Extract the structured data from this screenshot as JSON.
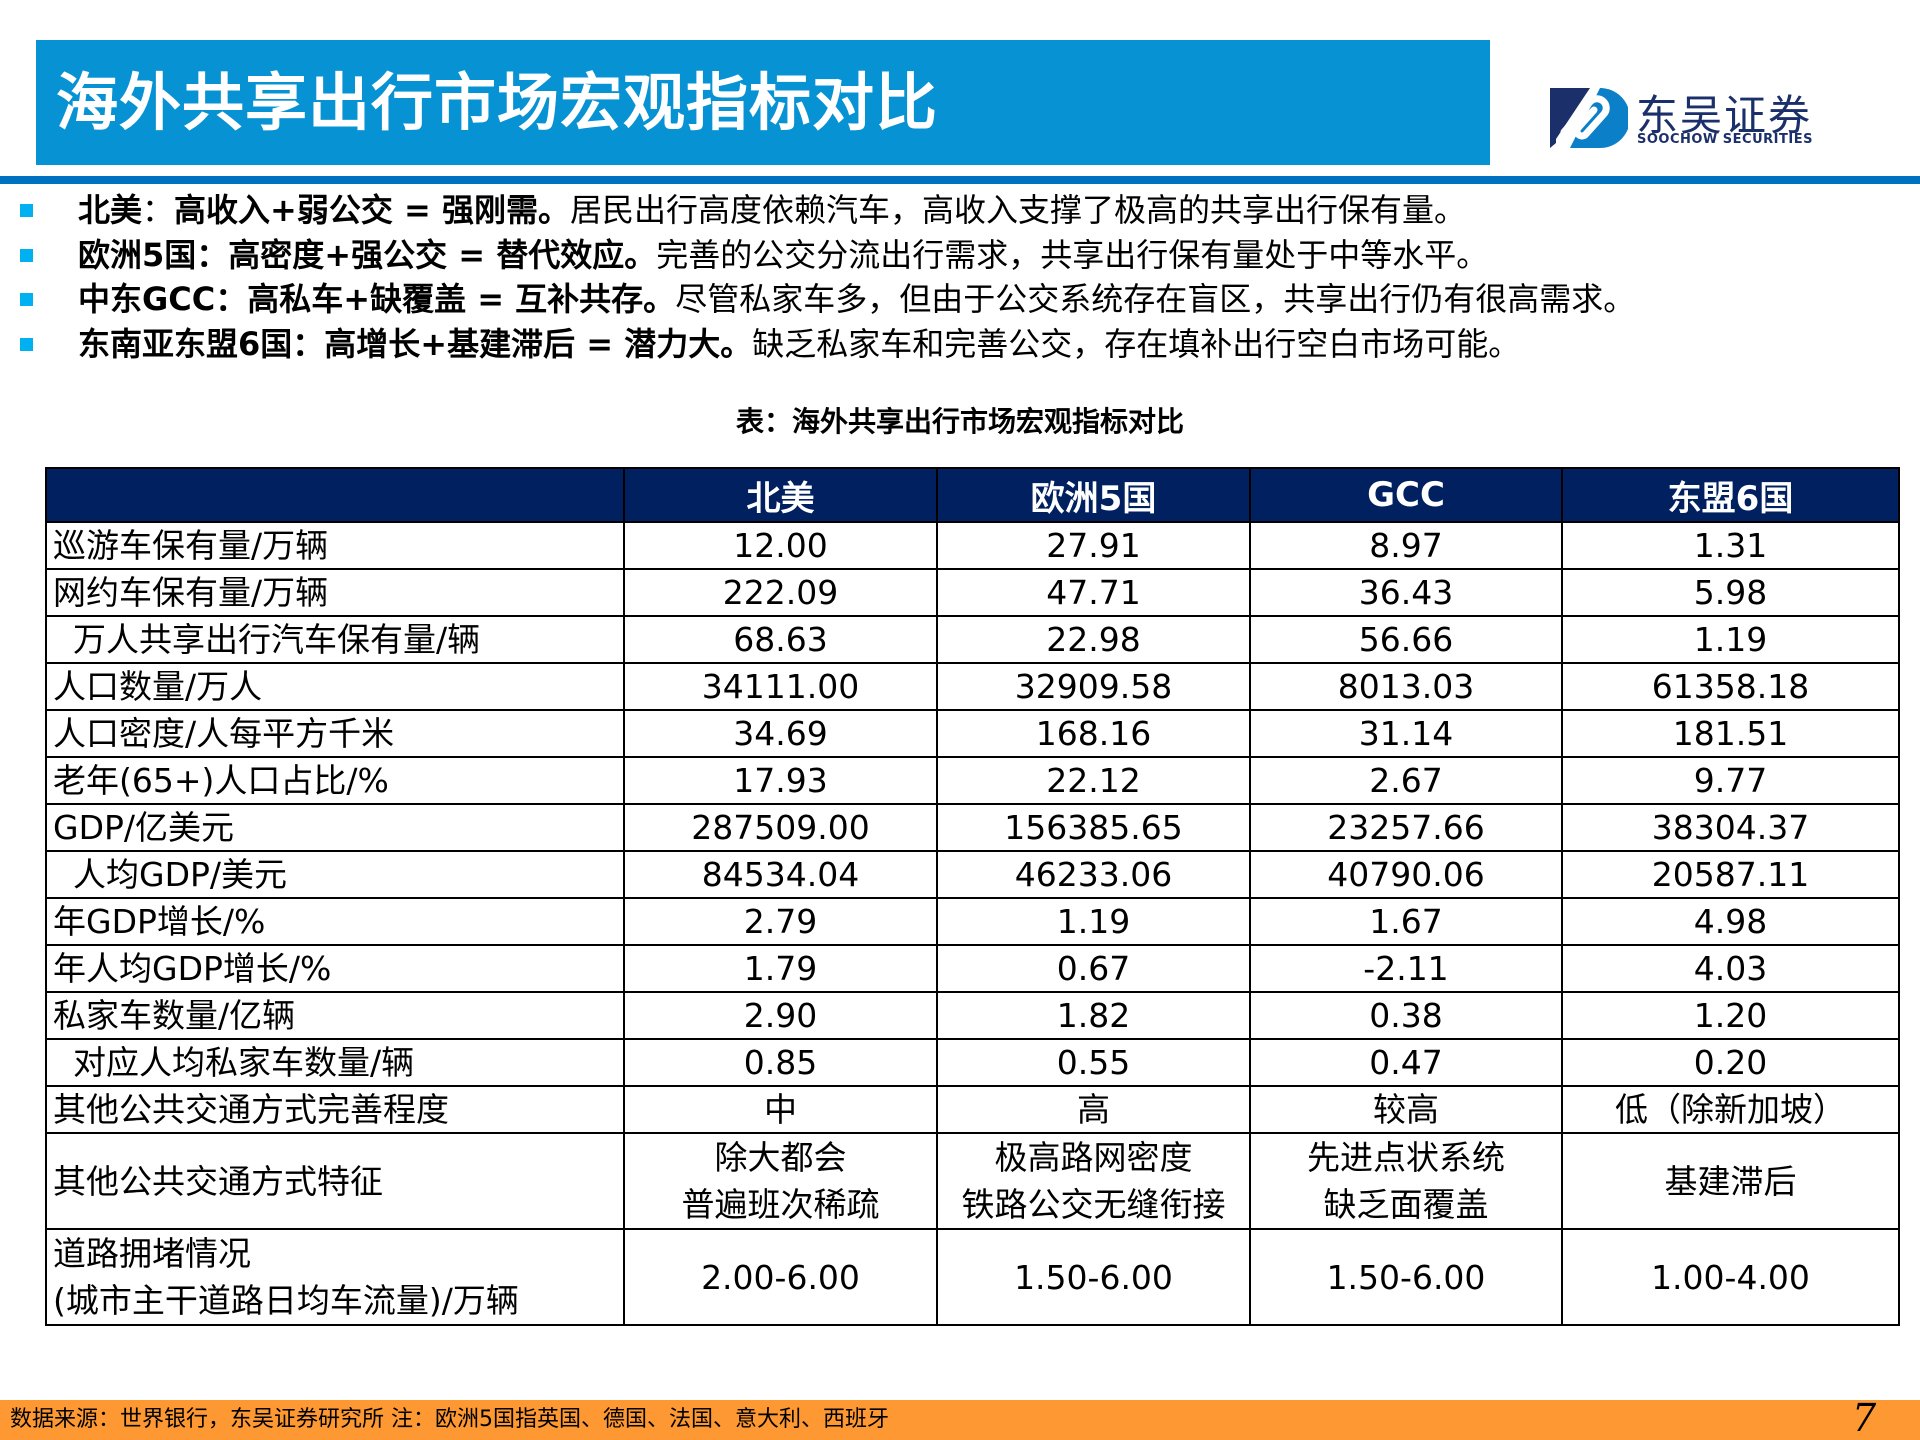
{
  "header": {
    "title": "海外共享出行市场宏观指标对比",
    "logo_cn": "东吴证券",
    "logo_en": "SOOCHOW SECURITIES",
    "colors": {
      "title_bar": "#0793d3",
      "rule": "#0070c0",
      "logo": "#1b2f6b"
    }
  },
  "bullets": [
    {
      "region": "北美",
      "sep": "：",
      "formula": "高收入+弱公交 = 强刚需。",
      "detail": "居民出行高度依赖汽车，高收入支撑了极高的共享出行保有量。"
    },
    {
      "region": "欧洲5国",
      "sep": "：",
      "formula": "高密度+强公交 = 替代效应。",
      "detail": "完善的公交分流出行需求，共享出行保有量处于中等水平。"
    },
    {
      "region": "中东GCC",
      "sep": "：",
      "formula": "高私车+缺覆盖 = 互补共存。",
      "detail": "尽管私家车多，但由于公交系统存在盲区，共享出行仍有很高需求。"
    },
    {
      "region": "东南亚东盟6国",
      "sep": "：",
      "formula": "高增长+基建滞后 = 潜力大。",
      "detail": "缺乏私家车和完善公交，存在填补出行空白市场可能。"
    }
  ],
  "table": {
    "caption": "表：海外共享出行市场宏观指标对比",
    "columns": [
      "",
      "北美",
      "欧洲5国",
      "GCC",
      "东盟6国"
    ],
    "rows": [
      {
        "label": "巡游车保有量/万辆",
        "indent": false,
        "values": [
          "12.00",
          "27.91",
          "8.97",
          "1.31"
        ]
      },
      {
        "label": "网约车保有量/万辆",
        "indent": false,
        "values": [
          "222.09",
          "47.71",
          "36.43",
          "5.98"
        ]
      },
      {
        "label": "万人共享出行汽车保有量/辆",
        "indent": true,
        "values": [
          "68.63",
          "22.98",
          "56.66",
          "1.19"
        ]
      },
      {
        "label": "人口数量/万人",
        "indent": false,
        "values": [
          "34111.00",
          "32909.58",
          "8013.03",
          "61358.18"
        ]
      },
      {
        "label": "人口密度/人每平方千米",
        "indent": false,
        "values": [
          "34.69",
          "168.16",
          "31.14",
          "181.51"
        ]
      },
      {
        "label": "老年(65+)人口占比/%",
        "indent": false,
        "values": [
          "17.93",
          "22.12",
          "2.67",
          "9.77"
        ]
      },
      {
        "label": "GDP/亿美元",
        "indent": false,
        "values": [
          "287509.00",
          "156385.65",
          "23257.66",
          "38304.37"
        ]
      },
      {
        "label": "人均GDP/美元",
        "indent": true,
        "values": [
          "84534.04",
          "46233.06",
          "40790.06",
          "20587.11"
        ]
      },
      {
        "label": "年GDP增长/%",
        "indent": false,
        "values": [
          "2.79",
          "1.19",
          "1.67",
          "4.98"
        ]
      },
      {
        "label": "年人均GDP增长/%",
        "indent": false,
        "values": [
          "1.79",
          "0.67",
          "-2.11",
          "4.03"
        ]
      },
      {
        "label": "私家车数量/亿辆",
        "indent": false,
        "values": [
          "2.90",
          "1.82",
          "0.38",
          "1.20"
        ]
      },
      {
        "label": "对应人均私家车数量/辆",
        "indent": true,
        "values": [
          "0.85",
          "0.55",
          "0.47",
          "0.20"
        ]
      },
      {
        "label": "其他公共交通方式完善程度",
        "indent": false,
        "values": [
          "中",
          "高",
          "较高",
          "低（除新加坡）"
        ]
      },
      {
        "label": "其他公共交通方式特征",
        "indent": false,
        "values": [
          [
            "除大都会",
            "普遍班次稀疏"
          ],
          [
            "极高路网密度",
            "铁路公交无缝衔接"
          ],
          [
            "先进点状系统",
            "缺乏面覆盖"
          ],
          [
            "基建滞后"
          ]
        ]
      },
      {
        "label": [
          "道路拥堵情况",
          "(城市主干道路日均车流量)/万辆"
        ],
        "indent": false,
        "values": [
          "2.00-6.00",
          "1.50-6.00",
          "1.50-6.00",
          "1.00-4.00"
        ]
      }
    ],
    "colors": {
      "header_bg": "#002060",
      "header_text": "#ffffff",
      "border": "#000000"
    }
  },
  "footer": {
    "source": "数据来源：世界银行，东吴证券研究所    注：欧洲5国指英国、德国、法国、意大利、西班牙",
    "page_number": "7",
    "color": "#fd9833"
  },
  "colors": {
    "bullet": "#00b0f0"
  }
}
